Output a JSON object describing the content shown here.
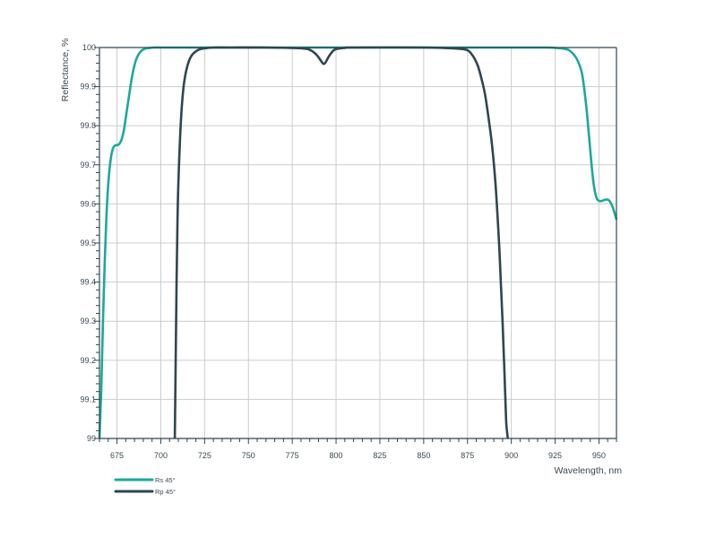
{
  "chart_data": {
    "type": "line",
    "xlabel": "Wavelength, nm",
    "ylabel": "Reflectance, %",
    "xlim": [
      665,
      960
    ],
    "ylim": [
      99,
      100
    ],
    "x_ticks": [
      675,
      700,
      725,
      750,
      775,
      800,
      825,
      850,
      875,
      900,
      925,
      950
    ],
    "x_tick_labels": [
      "675",
      "700",
      "725",
      "750",
      "775",
      "800",
      "825",
      "850",
      "875",
      "900",
      "925",
      "950"
    ],
    "y_ticks": [
      99,
      99.1,
      99.2,
      99.3,
      99.4,
      99.5,
      99.6,
      99.7,
      99.8,
      99.9,
      100
    ],
    "y_tick_labels": [
      "99",
      "99.1",
      "99.2",
      "99.3",
      "99.4",
      "99.5",
      "99.6",
      "99.7",
      "99.8",
      "99.9",
      "100"
    ],
    "grid": true,
    "legend_position": "bottom-left",
    "series": [
      {
        "name": "Rs 45°",
        "color": "#1ba99a",
        "x": [
          665,
          666,
          667,
          668,
          669,
          670,
          671,
          672,
          673,
          674,
          675,
          676,
          677,
          678,
          679,
          680,
          681,
          682,
          683,
          684,
          685,
          686,
          687,
          688,
          689,
          690,
          691,
          692,
          694,
          696,
          700,
          710,
          720,
          740,
          760,
          800,
          850,
          900,
          920,
          925,
          930,
          933,
          936,
          938,
          940,
          941,
          942,
          943,
          944,
          945,
          946,
          947,
          948,
          949,
          950,
          951,
          952,
          953,
          954,
          955,
          956,
          957,
          958,
          959,
          960
        ],
        "y": [
          99.0,
          99.12,
          99.3,
          99.45,
          99.57,
          99.65,
          99.7,
          99.73,
          99.745,
          99.75,
          99.75,
          99.752,
          99.758,
          99.77,
          99.79,
          99.82,
          99.85,
          99.88,
          99.91,
          99.935,
          99.955,
          99.97,
          99.98,
          99.987,
          99.992,
          99.995,
          99.997,
          99.998,
          99.999,
          100.0,
          100.0,
          100.0,
          100.0,
          100.0,
          100.0,
          100.0,
          100.0,
          100.0,
          100.0,
          99.999,
          99.997,
          99.993,
          99.98,
          99.965,
          99.94,
          99.915,
          99.88,
          99.84,
          99.79,
          99.74,
          99.69,
          99.65,
          99.625,
          99.612,
          99.608,
          99.607,
          99.608,
          99.61,
          99.611,
          99.611,
          99.608,
          99.6,
          99.59,
          99.575,
          99.56
        ]
      },
      {
        "name": "Rp 45°",
        "color": "#2f4650",
        "x": [
          708,
          708.5,
          709,
          709.5,
          710,
          711,
          712,
          713,
          714,
          715,
          716,
          717,
          718,
          720,
          722,
          725,
          730,
          740,
          760,
          780,
          785,
          788,
          790,
          792,
          793,
          794,
          796,
          798,
          800,
          805,
          810,
          850,
          870,
          875,
          877,
          879,
          881,
          883,
          885,
          887,
          889,
          891,
          893,
          894,
          895,
          896,
          897,
          897.5,
          898
        ],
        "y": [
          99.0,
          99.2,
          99.4,
          99.55,
          99.65,
          99.77,
          99.85,
          99.9,
          99.93,
          99.95,
          99.965,
          99.975,
          99.982,
          99.99,
          99.995,
          99.998,
          100.0,
          100.0,
          100.0,
          99.998,
          99.994,
          99.985,
          99.975,
          99.962,
          99.958,
          99.962,
          99.978,
          99.99,
          99.996,
          99.999,
          100.0,
          100.0,
          99.997,
          99.993,
          99.985,
          99.972,
          99.952,
          99.92,
          99.88,
          99.82,
          99.75,
          99.65,
          99.5,
          99.4,
          99.3,
          99.18,
          99.05,
          99.02,
          99.0
        ]
      }
    ]
  }
}
